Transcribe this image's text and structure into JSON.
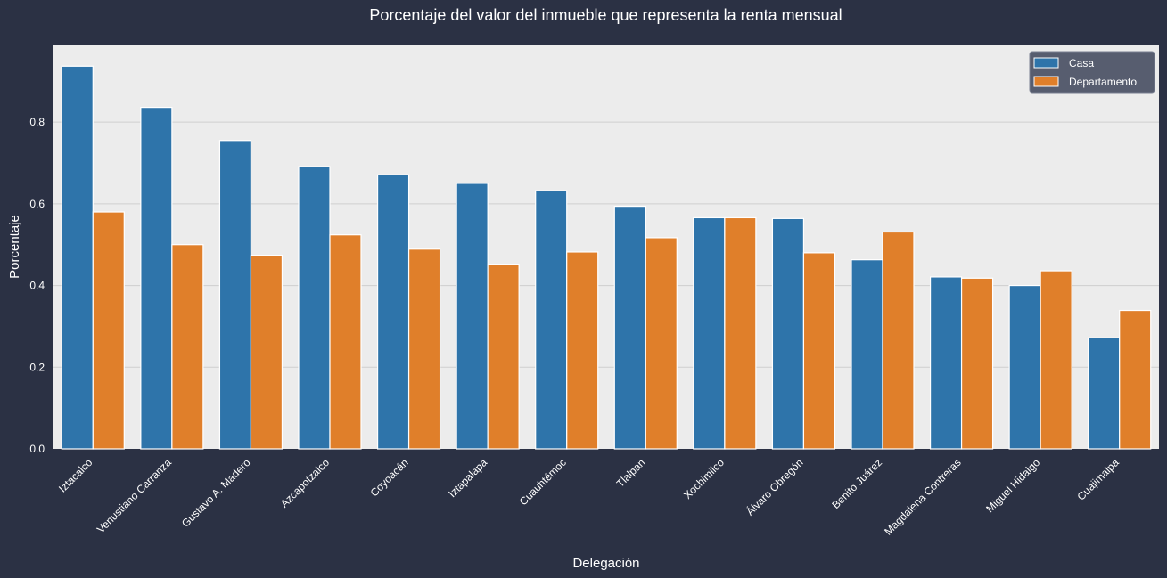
{
  "chart_data": {
    "type": "bar",
    "title": "Porcentaje del valor del inmueble que representa la renta mensual",
    "xlabel": "Delegación",
    "ylabel": "Porcentaje",
    "ylim": [
      0,
      0.99
    ],
    "yticks": [
      0.0,
      0.2,
      0.4,
      0.6,
      0.8
    ],
    "ytick_labels": [
      "0.0",
      "0.2",
      "0.4",
      "0.6",
      "0.8"
    ],
    "grid": "horizontal",
    "legend_position": "top-right",
    "categories": [
      "Iztacalco",
      "Venustiano Carranza",
      "Gustavo A. Madero",
      "Azcapotzalco",
      "Coyoacán",
      "Iztapalapa",
      "Cuauhtémoc",
      "Tlalpan",
      "Xochimilco",
      "Álvaro Obregón",
      "Benito Juárez",
      "Magdalena Contreras",
      "Miguel Hidalgo",
      "Cuajimalpa"
    ],
    "series": [
      {
        "name": "Casa",
        "color": "#2e74aa",
        "values": [
          0.937,
          0.836,
          0.755,
          0.691,
          0.671,
          0.65,
          0.632,
          0.594,
          0.566,
          0.564,
          0.463,
          0.421,
          0.4,
          0.272
        ]
      },
      {
        "name": "Departamento",
        "color": "#e07f2a",
        "values": [
          0.58,
          0.5,
          0.474,
          0.524,
          0.489,
          0.452,
          0.482,
          0.517,
          0.566,
          0.48,
          0.531,
          0.418,
          0.436,
          0.339
        ]
      }
    ]
  },
  "colors": {
    "figure_background": "#2b3144",
    "plot_background": "#ececec",
    "grid": "#cfcfcf",
    "legend_background": "#575d6f"
  }
}
